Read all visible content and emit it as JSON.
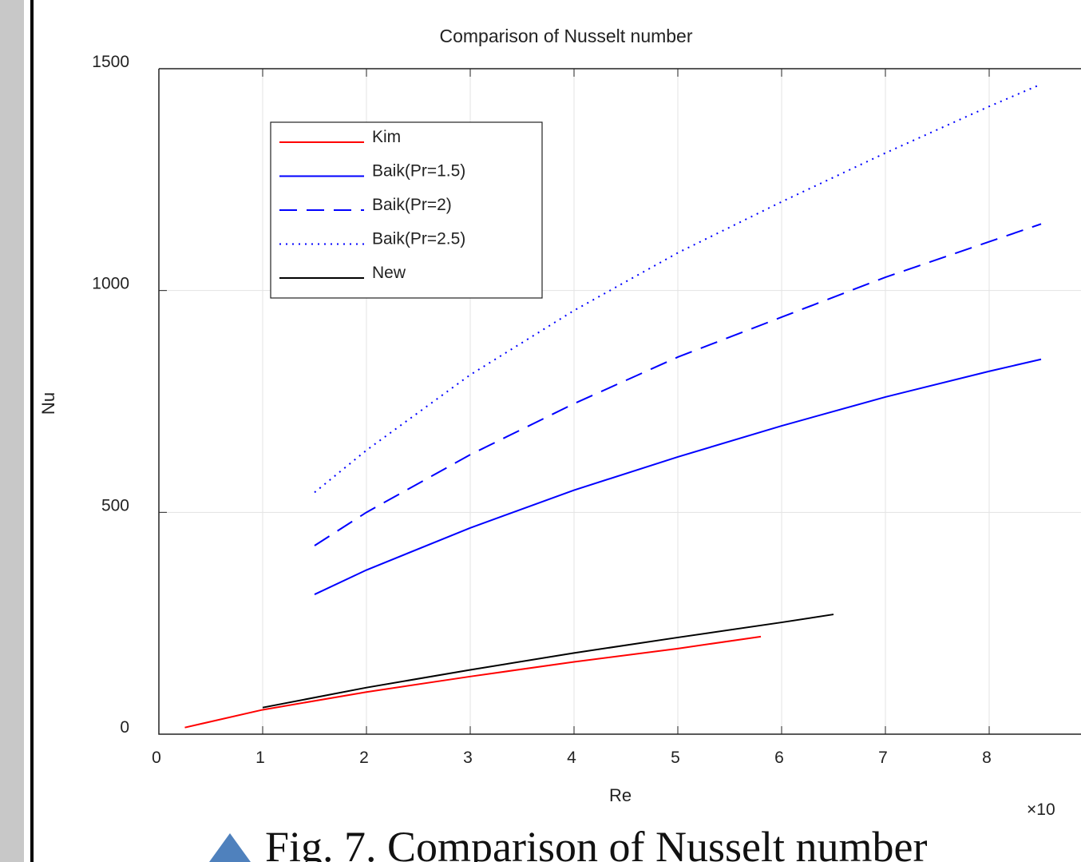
{
  "chart_data": {
    "type": "line",
    "title": "Comparison of Nusselt number",
    "x_label": "Re",
    "y_label": "Nu",
    "x_scale_label": "×10",
    "xlim": [
      0,
      9
    ],
    "xticks": [
      0,
      1,
      2,
      3,
      4,
      5,
      6,
      7,
      8
    ],
    "ylim": [
      0,
      1500
    ],
    "yticks": [
      0,
      500,
      1000,
      1500
    ],
    "grid": true,
    "legend": "upper left",
    "series": [
      {
        "name": "Kim",
        "color": "#ff0000",
        "dash": "solid",
        "x": [
          0.25,
          1,
          2,
          3,
          4,
          5,
          5.8
        ],
        "values": [
          15,
          55,
          95,
          130,
          163,
          193,
          220
        ]
      },
      {
        "name": "Baik(Pr=1.5)",
        "color": "#0000ff",
        "dash": "solid",
        "x": [
          1.5,
          2,
          3,
          4,
          5,
          6,
          7,
          8,
          8.5
        ],
        "values": [
          315,
          370,
          465,
          550,
          625,
          695,
          760,
          818,
          845
        ]
      },
      {
        "name": "Baik(Pr=2)",
        "color": "#0000ff",
        "dash": "dashed",
        "x": [
          1.5,
          2,
          3,
          4,
          5,
          6,
          7,
          8,
          8.5
        ],
        "values": [
          425,
          500,
          630,
          745,
          850,
          940,
          1030,
          1110,
          1150
        ]
      },
      {
        "name": "Baik(Pr=2.5)",
        "color": "#0000ff",
        "dash": "dotted",
        "x": [
          1.5,
          2,
          3,
          4,
          5,
          6,
          7,
          8,
          8.5
        ],
        "values": [
          545,
          640,
          810,
          955,
          1085,
          1200,
          1310,
          1415,
          1465
        ]
      },
      {
        "name": "New",
        "color": "#000000",
        "dash": "solid",
        "x": [
          1,
          2,
          3,
          4,
          5,
          6,
          6.5
        ],
        "values": [
          60,
          105,
          145,
          183,
          218,
          252,
          270
        ]
      }
    ]
  },
  "caption": "Fig. 7. Comparison of Nusselt number"
}
